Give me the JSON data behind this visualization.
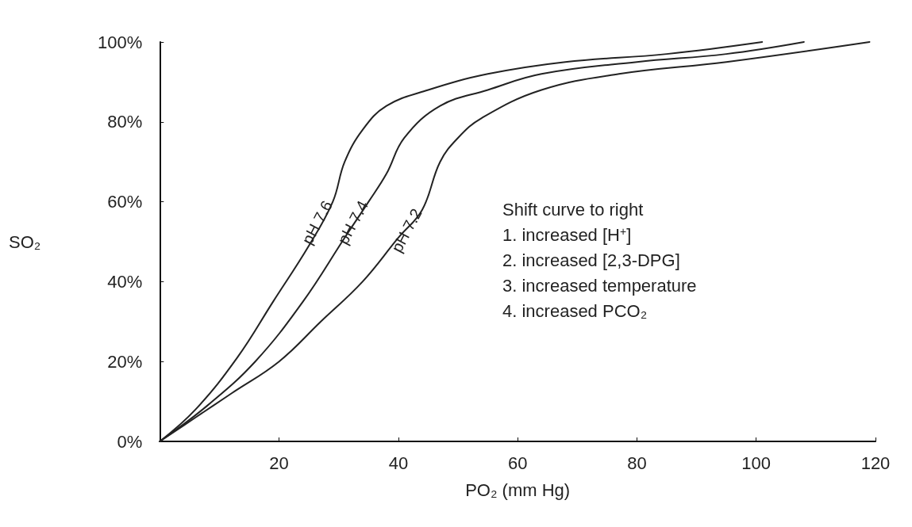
{
  "chart_data": {
    "type": "line",
    "xlabel": "PO₂ (mm Hg)",
    "ylabel": "SO₂",
    "xlim": [
      0,
      120
    ],
    "xticks": [
      20,
      40,
      60,
      80,
      100,
      120
    ],
    "ylim": [
      0,
      100
    ],
    "yticks": [
      {
        "value": 0,
        "label": "0%"
      },
      {
        "value": 20,
        "label": "20%"
      },
      {
        "value": 40,
        "label": "40%"
      },
      {
        "value": 60,
        "label": "60%"
      },
      {
        "value": 80,
        "label": "80%"
      },
      {
        "value": 100,
        "label": "100%"
      }
    ],
    "grid": false,
    "legend": false,
    "marker": "none",
    "line_style": "solid",
    "series": [
      {
        "name": "pH 7.6",
        "color": "#222222",
        "x": [
          0,
          6,
          13,
          19,
          25,
          29,
          31,
          34,
          38,
          45,
          55,
          68,
          85,
          101
        ],
        "values": [
          0,
          8,
          21,
          35,
          49,
          60,
          70,
          78,
          84,
          88,
          92,
          95,
          97,
          100
        ]
      },
      {
        "name": "pH 7.4",
        "color": "#222222",
        "x": [
          0,
          8,
          16,
          24,
          31,
          35,
          38,
          41,
          47,
          55,
          64,
          80,
          95,
          108
        ],
        "values": [
          0,
          9,
          20,
          35,
          51,
          60,
          67,
          76,
          84,
          88,
          92,
          95,
          97,
          100
        ]
      },
      {
        "name": "pH 7.2",
        "color": "#222222",
        "x": [
          0,
          6,
          12,
          20,
          27,
          34,
          40,
          44,
          47,
          50,
          54,
          64,
          77,
          95,
          119
        ],
        "values": [
          0,
          6,
          12,
          20,
          30,
          40,
          51,
          58,
          70,
          76,
          81,
          88,
          92,
          95,
          100
        ]
      }
    ],
    "annotations": [
      "Shift curve to right",
      "1. increased [H$^{+}$]",
      "2. increased [2,3-DPG]",
      "3. increased temperature",
      "4. increased PCO₂"
    ]
  }
}
